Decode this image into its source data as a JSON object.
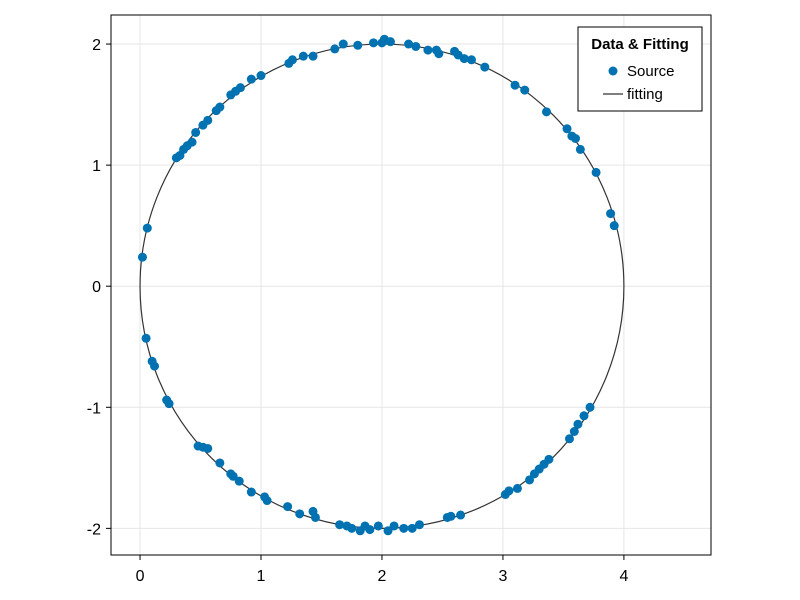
{
  "chart_data": {
    "type": "scatter",
    "title": "",
    "xlabel": "",
    "ylabel": "",
    "xlim": [
      -0.24,
      4.72
    ],
    "ylim": [
      -2.22,
      2.24
    ],
    "xticks": [
      0,
      1,
      2,
      3,
      4
    ],
    "yticks": [
      -2,
      -1,
      0,
      1,
      2
    ],
    "grid": true,
    "legend": {
      "title": "Data & Fitting",
      "placement": "top-right",
      "entries": [
        {
          "label": "Source",
          "kind": "marker",
          "color": "#0072b2"
        },
        {
          "label": "fitting",
          "kind": "line",
          "color": "#333333"
        }
      ]
    },
    "series": [
      {
        "name": "Source",
        "kind": "scatter",
        "color": "#0072b2",
        "points": [
          [
            0.02,
            0.24
          ],
          [
            0.06,
            0.48
          ],
          [
            0.05,
            -0.43
          ],
          [
            0.1,
            -0.62
          ],
          [
            0.12,
            -0.66
          ],
          [
            0.22,
            -0.94
          ],
          [
            0.24,
            -0.97
          ],
          [
            0.3,
            1.06
          ],
          [
            0.33,
            1.08
          ],
          [
            0.36,
            1.13
          ],
          [
            0.39,
            1.16
          ],
          [
            0.43,
            1.19
          ],
          [
            0.46,
            1.27
          ],
          [
            0.48,
            -1.32
          ],
          [
            0.52,
            -1.33
          ],
          [
            0.56,
            -1.34
          ],
          [
            0.52,
            1.33
          ],
          [
            0.56,
            1.37
          ],
          [
            0.63,
            1.45
          ],
          [
            0.66,
            1.48
          ],
          [
            0.66,
            -1.46
          ],
          [
            0.75,
            -1.55
          ],
          [
            0.77,
            -1.57
          ],
          [
            0.75,
            1.58
          ],
          [
            0.79,
            1.61
          ],
          [
            0.83,
            1.64
          ],
          [
            0.82,
            -1.61
          ],
          [
            0.92,
            -1.7
          ],
          [
            0.92,
            1.71
          ],
          [
            1.0,
            1.74
          ],
          [
            1.03,
            -1.74
          ],
          [
            1.05,
            -1.77
          ],
          [
            1.22,
            -1.82
          ],
          [
            1.23,
            1.84
          ],
          [
            1.26,
            1.87
          ],
          [
            1.32,
            -1.88
          ],
          [
            1.35,
            1.9
          ],
          [
            1.43,
            1.9
          ],
          [
            1.43,
            -1.86
          ],
          [
            1.45,
            -1.91
          ],
          [
            1.61,
            1.96
          ],
          [
            1.68,
            2.0
          ],
          [
            1.65,
            -1.97
          ],
          [
            1.71,
            -1.98
          ],
          [
            1.75,
            -2.0
          ],
          [
            1.8,
            1.99
          ],
          [
            1.82,
            -2.02
          ],
          [
            1.86,
            -1.98
          ],
          [
            1.9,
            -2.01
          ],
          [
            1.93,
            2.01
          ],
          [
            1.97,
            -1.98
          ],
          [
            2.0,
            2.01
          ],
          [
            2.02,
            2.04
          ],
          [
            2.05,
            -2.02
          ],
          [
            2.07,
            2.02
          ],
          [
            2.1,
            -1.98
          ],
          [
            2.18,
            -2.0
          ],
          [
            2.22,
            2.0
          ],
          [
            2.25,
            -2.0
          ],
          [
            2.28,
            1.98
          ],
          [
            2.31,
            -1.97
          ],
          [
            2.38,
            1.95
          ],
          [
            2.45,
            1.95
          ],
          [
            2.47,
            1.92
          ],
          [
            2.54,
            -1.91
          ],
          [
            2.57,
            -1.9
          ],
          [
            2.6,
            1.94
          ],
          [
            2.63,
            1.91
          ],
          [
            2.65,
            -1.89
          ],
          [
            2.68,
            1.88
          ],
          [
            2.74,
            1.87
          ],
          [
            2.85,
            1.81
          ],
          [
            3.02,
            -1.72
          ],
          [
            3.05,
            -1.69
          ],
          [
            3.1,
            1.66
          ],
          [
            3.12,
            -1.67
          ],
          [
            3.18,
            1.62
          ],
          [
            3.22,
            -1.6
          ],
          [
            3.26,
            -1.55
          ],
          [
            3.3,
            -1.51
          ],
          [
            3.34,
            -1.47
          ],
          [
            3.38,
            -1.43
          ],
          [
            3.36,
            1.44
          ],
          [
            3.53,
            1.3
          ],
          [
            3.55,
            -1.26
          ],
          [
            3.57,
            1.24
          ],
          [
            3.59,
            -1.2
          ],
          [
            3.6,
            1.22
          ],
          [
            3.62,
            -1.14
          ],
          [
            3.64,
            1.13
          ],
          [
            3.67,
            -1.07
          ],
          [
            3.72,
            -1.0
          ],
          [
            3.77,
            0.94
          ],
          [
            3.89,
            0.6
          ],
          [
            3.92,
            0.5
          ]
        ]
      },
      {
        "name": "fitting",
        "kind": "line",
        "color": "#333333",
        "shape": "circle",
        "center": [
          2.0,
          0.0
        ],
        "radius": 2.0
      }
    ]
  }
}
